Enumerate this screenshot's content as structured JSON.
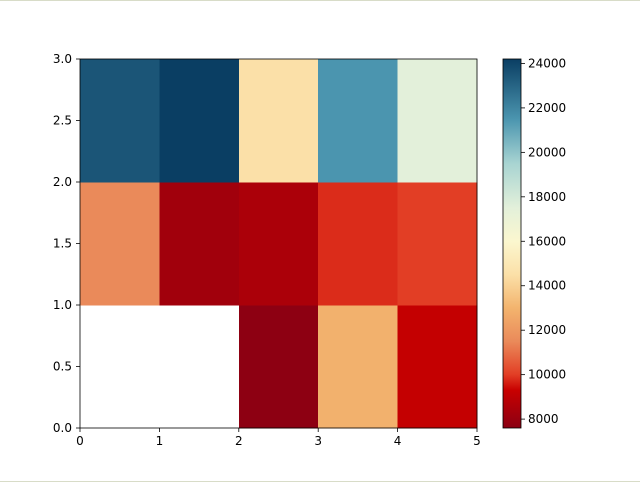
{
  "chart_data": {
    "type": "heatmap",
    "title": "",
    "xlabel": "",
    "ylabel": "",
    "xlim": [
      0,
      5
    ],
    "ylim": [
      0,
      3
    ],
    "x_edges": [
      0,
      1,
      2,
      3,
      4,
      5
    ],
    "y_edges": [
      0,
      1,
      2,
      3
    ],
    "x_ticks": [
      "0",
      "1",
      "2",
      "3",
      "4",
      "5"
    ],
    "y_ticks": [
      "0.0",
      "0.5",
      "1.0",
      "1.5",
      "2.0",
      "2.5",
      "3.0"
    ],
    "grid": false,
    "colormap": "RdYlBu",
    "missing_color": "#ffffff",
    "colorbar": {
      "range": [
        7600,
        24200
      ],
      "ticks": [
        "8000",
        "10000",
        "12000",
        "14000",
        "16000",
        "18000",
        "20000",
        "22000",
        "24000"
      ],
      "stops": [
        {
          "value": 7600,
          "color": "#8b0013"
        },
        {
          "value": 9300,
          "color": "#c80000"
        },
        {
          "value": 10000,
          "color": "#e23e25"
        },
        {
          "value": 11500,
          "color": "#ea8a5a"
        },
        {
          "value": 13000,
          "color": "#f3b46e"
        },
        {
          "value": 14500,
          "color": "#fbe0a8"
        },
        {
          "value": 16000,
          "color": "#fbf7cf"
        },
        {
          "value": 17500,
          "color": "#e3f0da"
        },
        {
          "value": 19500,
          "color": "#a8d4d2"
        },
        {
          "value": 21500,
          "color": "#4b95af"
        },
        {
          "value": 24200,
          "color": "#0a3e63"
        }
      ]
    },
    "rows": [
      {
        "y": "0-1",
        "values": [
          null,
          null,
          7650,
          12900,
          9200
        ]
      },
      {
        "y": "1-2",
        "values": [
          11500,
          8200,
          8500,
          9800,
          10000
        ]
      },
      {
        "y": "2-3",
        "values": [
          23500,
          24200,
          14500,
          21500,
          17500
        ]
      }
    ]
  }
}
